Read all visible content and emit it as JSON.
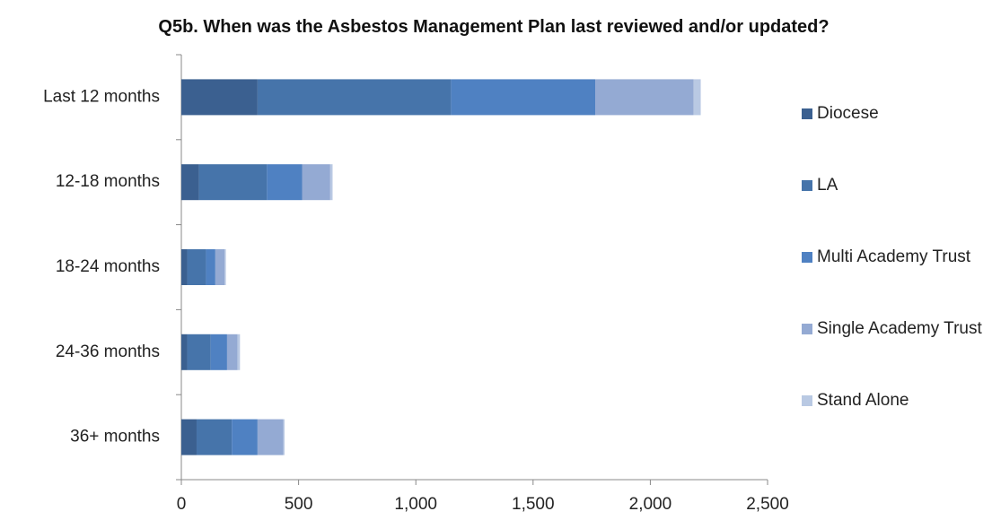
{
  "chart_data": {
    "type": "stacked_barh",
    "title": "Q5b. When was the Asbestos Management Plan last reviewed and/or updated?",
    "categories": [
      "Last 12 months",
      "12-18 months",
      "18-24 months",
      "24-36 months",
      "36+ months"
    ],
    "series": [
      {
        "name": "Diocese",
        "color": "#3b6090",
        "values": [
          325,
          75,
          25,
          25,
          65
        ]
      },
      {
        "name": "LA",
        "color": "#4674aa",
        "values": [
          825,
          290,
          80,
          100,
          150
        ]
      },
      {
        "name": "Multi Academy Trust",
        "color": "#4f81c2",
        "values": [
          615,
          150,
          40,
          70,
          110
        ]
      },
      {
        "name": "Single Academy Trust",
        "color": "#94aad3",
        "values": [
          420,
          120,
          40,
          45,
          110
        ]
      },
      {
        "name": "Stand Alone",
        "color": "#b9c9e3",
        "values": [
          30,
          10,
          5,
          10,
          5
        ]
      }
    ],
    "xlim": [
      0,
      2500
    ],
    "xticks": [
      0,
      500,
      {
        "value": 1000,
        "label": "1,000"
      },
      {
        "value": 1500,
        "label": "1,500"
      },
      {
        "value": 2000,
        "label": "2,000"
      },
      {
        "value": 2500,
        "label": "2,500"
      }
    ],
    "legend": "right"
  }
}
